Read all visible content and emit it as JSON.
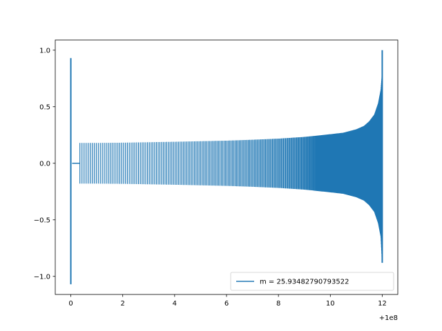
{
  "chart_data": {
    "type": "line",
    "title": "",
    "xlabel": "",
    "ylabel": "",
    "x_offset_label": "+1e8",
    "xlim": [
      -0.6,
      12.6
    ],
    "ylim": [
      -1.16,
      1.09
    ],
    "x_ticks": [
      0,
      2,
      4,
      6,
      8,
      10,
      12
    ],
    "x_tick_labels": [
      "0",
      "2",
      "4",
      "6",
      "8",
      "10",
      "12"
    ],
    "y_ticks": [
      -1.0,
      -0.5,
      0.0,
      0.5,
      1.0
    ],
    "y_tick_labels": [
      "−1.0",
      "−0.5",
      "0.0",
      "0.5",
      "1.0"
    ],
    "grid": false,
    "legend_position": "lower-right",
    "series": [
      {
        "name": "m = 25.93482790793522",
        "color": "#1f77b4",
        "envelope": {
          "x": [
            0.35,
            1,
            2,
            3,
            4,
            5,
            6,
            7,
            8,
            9,
            10,
            10.5,
            11,
            11.3,
            11.5,
            11.7,
            11.85,
            11.95,
            12.0
          ],
          "upper": [
            0.18,
            0.18,
            0.182,
            0.186,
            0.19,
            0.195,
            0.2,
            0.208,
            0.218,
            0.233,
            0.257,
            0.27,
            0.3,
            0.33,
            0.37,
            0.43,
            0.53,
            0.65,
            0.8
          ],
          "lower": [
            -0.18,
            -0.18,
            -0.182,
            -0.186,
            -0.19,
            -0.195,
            -0.2,
            -0.208,
            -0.218,
            -0.233,
            -0.257,
            -0.27,
            -0.3,
            -0.33,
            -0.37,
            -0.43,
            -0.53,
            -0.65,
            -0.88
          ]
        },
        "spikes": [
          {
            "x": 0.0,
            "max": 0.93,
            "min": -1.07
          },
          {
            "x": 12.0,
            "max": 1.0,
            "min": -0.88
          }
        ],
        "flat_segment": {
          "x": [
            0.05,
            0.35
          ],
          "y": 0.0
        }
      }
    ]
  }
}
